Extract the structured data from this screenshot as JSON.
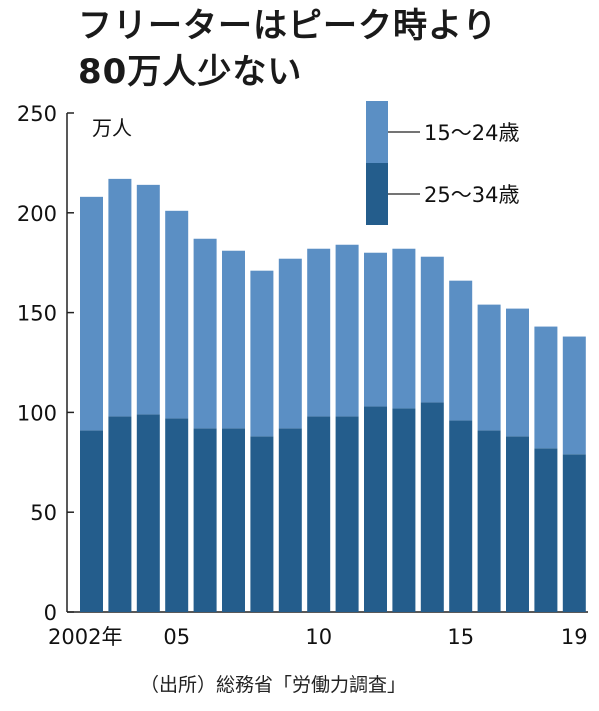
{
  "title": {
    "line1": "フリーターはピーク時より",
    "line2": "80万人少ない"
  },
  "source": "（出所）総務省「労働力調査」",
  "chart_data": {
    "type": "bar",
    "stacked": true,
    "categories": [
      "2002年",
      "03",
      "04",
      "05",
      "06",
      "07",
      "08",
      "09",
      "10",
      "11",
      "12",
      "13",
      "14",
      "15",
      "16",
      "17",
      "18",
      "19"
    ],
    "x_tick_labels": [
      "2002年",
      "05",
      "10",
      "15",
      "19"
    ],
    "x_tick_indices": [
      0,
      3,
      8,
      13,
      17
    ],
    "ylabel": "万人",
    "ylim": [
      0,
      250
    ],
    "yticks": [
      0,
      50,
      100,
      150,
      200,
      250
    ],
    "grid": false,
    "legend_position": "top-right",
    "series": [
      {
        "name": "25～34歳",
        "color": "#245d8c",
        "values": [
          91,
          98,
          99,
          97,
          92,
          92,
          88,
          92,
          98,
          98,
          103,
          102,
          105,
          96,
          91,
          88,
          82,
          79
        ]
      },
      {
        "name": "15～24歳",
        "color": "#5b8fc4",
        "values": [
          117,
          119,
          115,
          104,
          95,
          89,
          83,
          85,
          84,
          86,
          77,
          80,
          73,
          70,
          63,
          64,
          61,
          59
        ]
      }
    ]
  }
}
